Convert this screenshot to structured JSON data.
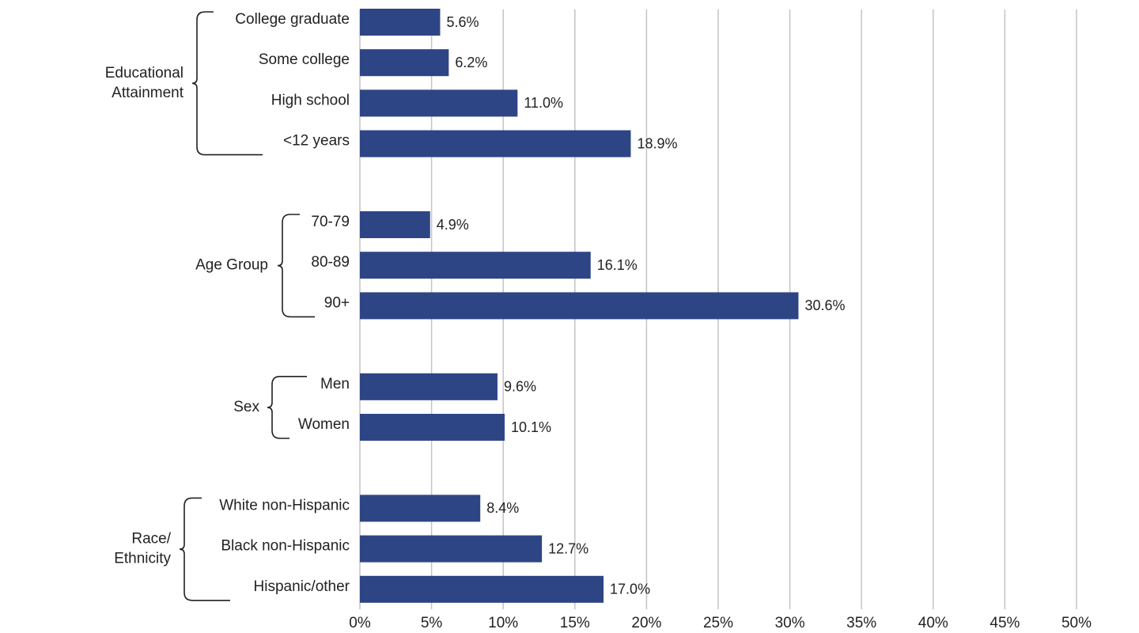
{
  "chart_data": {
    "type": "bar",
    "orientation": "horizontal",
    "color": "#2e4585",
    "grid": true,
    "xlim": [
      0,
      50
    ],
    "xticks": [
      {
        "value": 0,
        "label": "0%"
      },
      {
        "value": 5,
        "label": "5%"
      },
      {
        "value": 10,
        "label": "10%"
      },
      {
        "value": 15,
        "label": "15%"
      },
      {
        "value": 20,
        "label": "20%"
      },
      {
        "value": 25,
        "label": "25%"
      },
      {
        "value": 30,
        "label": "30%"
      },
      {
        "value": 35,
        "label": "35%"
      },
      {
        "value": 40,
        "label": "40%"
      },
      {
        "value": 45,
        "label": "45%"
      },
      {
        "value": 50,
        "label": "50%"
      }
    ],
    "groups": [
      {
        "name": [
          "Educational",
          "Attainment"
        ],
        "categories": [
          "College graduate",
          "Some college",
          "High school",
          "<12 years"
        ],
        "values": [
          5.6,
          6.2,
          11.0,
          18.9
        ],
        "value_labels": [
          "5.6%",
          "6.2%",
          "11.0%",
          "18.9%"
        ]
      },
      {
        "name": [
          "Age Group"
        ],
        "categories": [
          "70-79",
          "80-89",
          "90+"
        ],
        "values": [
          4.9,
          16.1,
          30.6
        ],
        "value_labels": [
          "4.9%",
          "16.1%",
          "30.6%"
        ]
      },
      {
        "name": [
          "Sex"
        ],
        "categories": [
          "Men",
          "Women"
        ],
        "values": [
          9.6,
          10.1
        ],
        "value_labels": [
          "9.6%",
          "10.1%"
        ]
      },
      {
        "name": [
          "Race/",
          "Ethnicity"
        ],
        "categories": [
          "White non-Hispanic",
          "Black non-Hispanic",
          "Hispanic/other"
        ],
        "values": [
          8.4,
          12.7,
          17.0
        ],
        "value_labels": [
          "8.4%",
          "12.7%",
          "17.0%"
        ]
      }
    ]
  }
}
